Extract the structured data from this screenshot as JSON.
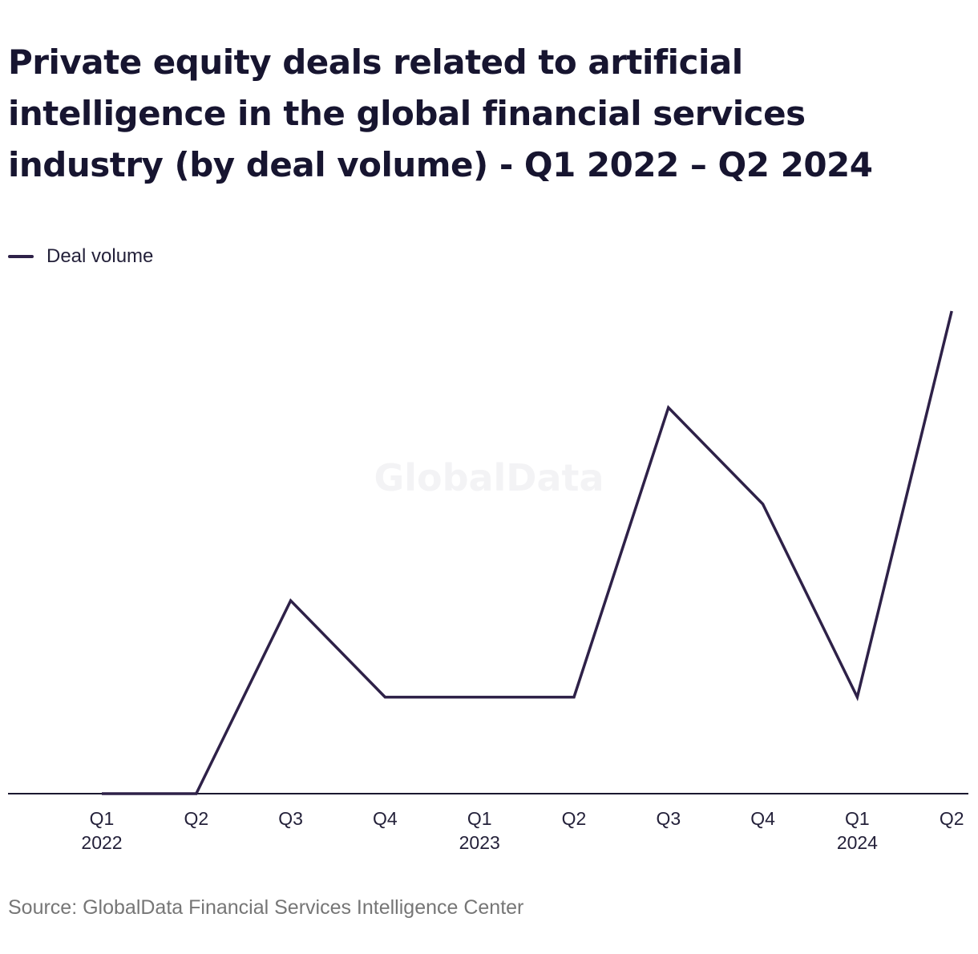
{
  "chart_data": {
    "type": "line",
    "title": "Private equity deals related to artificial intelligence in the global financial services industry (by deal volume) - Q1 2022 – Q2 2024",
    "categories": [
      "Q1 2022",
      "Q2",
      "Q3",
      "Q4",
      "Q1 2023",
      "Q2",
      "Q3",
      "Q4",
      "Q1 2024",
      "Q2"
    ],
    "tick_labels": [
      {
        "quarter": "Q1",
        "year": "2022"
      },
      {
        "quarter": "Q2",
        "year": ""
      },
      {
        "quarter": "Q3",
        "year": ""
      },
      {
        "quarter": "Q4",
        "year": ""
      },
      {
        "quarter": "Q1",
        "year": "2023"
      },
      {
        "quarter": "Q2",
        "year": ""
      },
      {
        "quarter": "Q3",
        "year": ""
      },
      {
        "quarter": "Q4",
        "year": ""
      },
      {
        "quarter": "Q1",
        "year": "2024"
      },
      {
        "quarter": "Q2",
        "year": ""
      }
    ],
    "series": [
      {
        "name": "Deal volume",
        "values": [
          0,
          0,
          2,
          1,
          1,
          1,
          4,
          3,
          1,
          5
        ],
        "color": "#2e2148"
      }
    ],
    "ylim": [
      0,
      5
    ],
    "grid": false,
    "legend_position": "top-left",
    "xlabel": "",
    "ylabel": ""
  },
  "legend": {
    "label": "Deal volume"
  },
  "watermark": "GlobalData",
  "source": "Source: GlobalData Financial Services Intelligence Center",
  "colors": {
    "line": "#2e2148",
    "axis": "#1b1830",
    "text": "#171530",
    "muted": "#767676"
  }
}
